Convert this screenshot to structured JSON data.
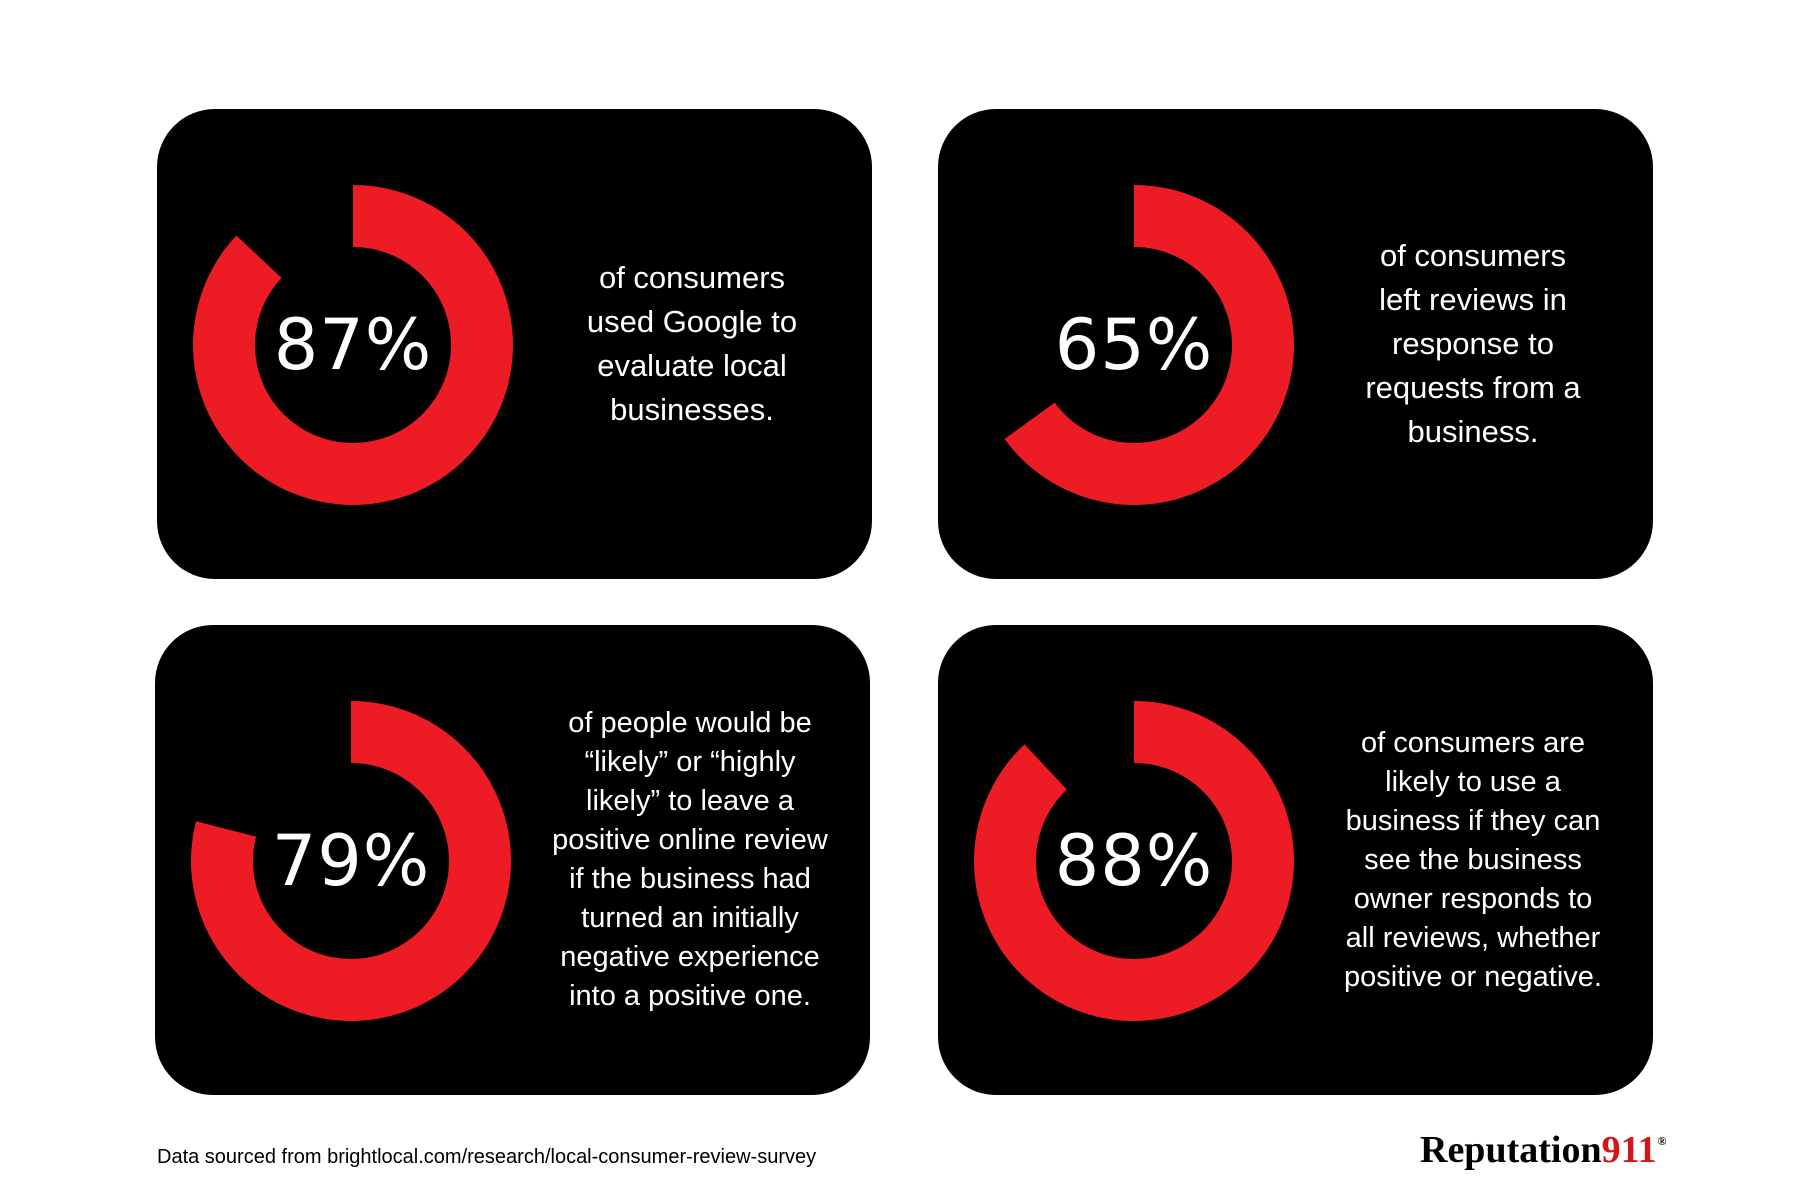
{
  "chart_data": [
    {
      "type": "donut",
      "value": 87,
      "label": "87%",
      "description": [
        "of consumers",
        "used Google to",
        "evaluate local",
        "businesses."
      ]
    },
    {
      "type": "donut",
      "value": 65,
      "label": "65%",
      "description": [
        "of consumers",
        "left reviews in",
        "response to",
        "requests from a",
        "business."
      ]
    },
    {
      "type": "donut",
      "value": 79,
      "label": "79%",
      "description": [
        "of people would be",
        "“likely” or “highly",
        "likely” to leave a",
        "positive online review",
        "if the business had",
        "turned an initially",
        "negative experience",
        "into a positive one."
      ]
    },
    {
      "type": "donut",
      "value": 88,
      "label": "88%",
      "description": [
        "of consumers are",
        "likely to use a",
        "business if they can",
        "see the business",
        "owner responds to",
        "all reviews, whether",
        "positive or negative."
      ]
    }
  ],
  "colors": {
    "accent": "#ed1c24",
    "card_background": "#000000",
    "text_on_card": "#ffffff",
    "logo_number": "#d4161c"
  },
  "footer": {
    "source_text": "Data sourced from brightlocal.com/research/local-consumer-review-survey"
  },
  "logo": {
    "word": "Reputation",
    "number": "911",
    "registered": "®"
  }
}
